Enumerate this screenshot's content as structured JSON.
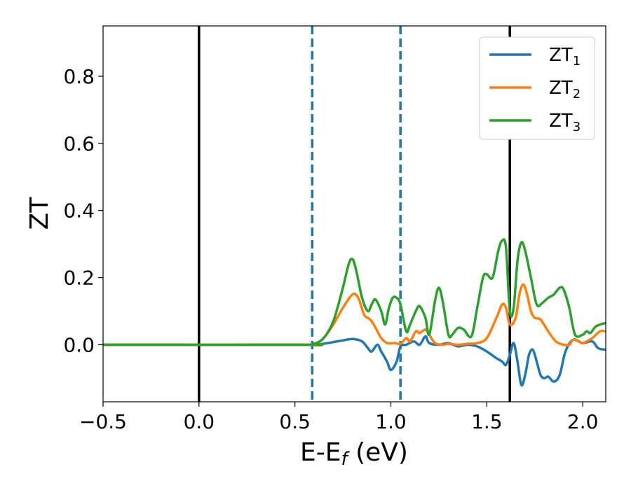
{
  "chart_data": {
    "type": "line",
    "title": "",
    "xlabel": {
      "main": "E-E",
      "sub": "f",
      "rest": " (eV)"
    },
    "ylabel": "ZT",
    "xlim": [
      -0.5,
      2.12
    ],
    "ylim": [
      -0.17,
      0.95
    ],
    "xticks": [
      -0.5,
      0.0,
      0.5,
      1.0,
      1.5,
      2.0
    ],
    "xtick_labels": [
      "−0.5",
      "0.0",
      "0.5",
      "1.0",
      "1.5",
      "2.0"
    ],
    "yticks": [
      0.0,
      0.2,
      0.4,
      0.6,
      0.8
    ],
    "ytick_labels": [
      "0.0",
      "0.2",
      "0.4",
      "0.6",
      "0.8"
    ],
    "grid": false,
    "legend_position": "top-right",
    "vlines": [
      {
        "x": 0.0,
        "style": "solid",
        "color": "#000000"
      },
      {
        "x": 1.62,
        "style": "solid",
        "color": "#000000"
      },
      {
        "x": 0.59,
        "style": "dashed",
        "color": "#1f77b4"
      },
      {
        "x": 1.05,
        "style": "dashed",
        "color": "#1f77b4"
      }
    ],
    "series": [
      {
        "name": "ZT",
        "sub": "1",
        "color": "#1f77b4",
        "points": [
          [
            -0.5,
            0.0
          ],
          [
            0.55,
            0.0
          ],
          [
            0.6,
            0.0
          ],
          [
            0.65,
            0.003
          ],
          [
            0.7,
            0.008
          ],
          [
            0.75,
            0.013
          ],
          [
            0.8,
            0.017
          ],
          [
            0.85,
            0.01
          ],
          [
            0.88,
            -0.01
          ],
          [
            0.9,
            -0.02
          ],
          [
            0.93,
            0.0
          ],
          [
            0.95,
            -0.02
          ],
          [
            0.98,
            -0.05
          ],
          [
            1.0,
            -0.075
          ],
          [
            1.03,
            -0.05
          ],
          [
            1.05,
            -0.005
          ],
          [
            1.08,
            0.0
          ],
          [
            1.12,
            0.01
          ],
          [
            1.15,
            0.0
          ],
          [
            1.18,
            0.025
          ],
          [
            1.2,
            0.005
          ],
          [
            1.25,
            0.0
          ],
          [
            1.3,
            0.005
          ],
          [
            1.35,
            -0.005
          ],
          [
            1.4,
            0.0
          ],
          [
            1.45,
            -0.005
          ],
          [
            1.5,
            -0.02
          ],
          [
            1.55,
            -0.04
          ],
          [
            1.58,
            -0.05
          ],
          [
            1.6,
            -0.06
          ],
          [
            1.62,
            -0.03
          ],
          [
            1.64,
            0.005
          ],
          [
            1.66,
            -0.05
          ],
          [
            1.68,
            -0.12
          ],
          [
            1.7,
            -0.09
          ],
          [
            1.72,
            -0.03
          ],
          [
            1.74,
            -0.015
          ],
          [
            1.76,
            -0.05
          ],
          [
            1.78,
            -0.09
          ],
          [
            1.8,
            -0.1
          ],
          [
            1.82,
            -0.095
          ],
          [
            1.85,
            -0.11
          ],
          [
            1.88,
            -0.09
          ],
          [
            1.91,
            -0.02
          ],
          [
            1.95,
            0.015
          ],
          [
            2.0,
            0.005
          ],
          [
            2.05,
            0.01
          ],
          [
            2.08,
            -0.01
          ],
          [
            2.12,
            -0.015
          ]
        ]
      },
      {
        "name": "ZT",
        "sub": "2",
        "color": "#ff7f0e",
        "points": [
          [
            -0.5,
            0.0
          ],
          [
            0.55,
            0.0
          ],
          [
            0.6,
            0.0
          ],
          [
            0.65,
            0.02
          ],
          [
            0.7,
            0.06
          ],
          [
            0.75,
            0.11
          ],
          [
            0.8,
            0.15
          ],
          [
            0.83,
            0.14
          ],
          [
            0.86,
            0.09
          ],
          [
            0.88,
            0.08
          ],
          [
            0.9,
            0.07
          ],
          [
            0.93,
            0.04
          ],
          [
            0.95,
            0.02
          ],
          [
            0.98,
            0.005
          ],
          [
            1.02,
            0.005
          ],
          [
            1.05,
            0.003
          ],
          [
            1.08,
            0.02
          ],
          [
            1.1,
            0.01
          ],
          [
            1.13,
            0.04
          ],
          [
            1.15,
            0.035
          ],
          [
            1.18,
            0.045
          ],
          [
            1.2,
            0.03
          ],
          [
            1.23,
            0.005
          ],
          [
            1.27,
            0.0
          ],
          [
            1.3,
            0.003
          ],
          [
            1.35,
            0.0
          ],
          [
            1.4,
            0.003
          ],
          [
            1.45,
            0.005
          ],
          [
            1.5,
            0.02
          ],
          [
            1.55,
            0.08
          ],
          [
            1.58,
            0.12
          ],
          [
            1.6,
            0.11
          ],
          [
            1.62,
            0.06
          ],
          [
            1.65,
            0.08
          ],
          [
            1.67,
            0.15
          ],
          [
            1.69,
            0.18
          ],
          [
            1.71,
            0.15
          ],
          [
            1.73,
            0.1
          ],
          [
            1.75,
            0.08
          ],
          [
            1.78,
            0.075
          ],
          [
            1.82,
            0.04
          ],
          [
            1.86,
            0.01
          ],
          [
            1.9,
            0.0
          ],
          [
            1.93,
            0.0
          ],
          [
            1.95,
            0.015
          ],
          [
            1.98,
            0.01
          ],
          [
            2.0,
            0.005
          ],
          [
            2.05,
            0.02
          ],
          [
            2.09,
            0.04
          ],
          [
            2.12,
            0.04
          ]
        ]
      },
      {
        "name": "ZT",
        "sub": "3",
        "color": "#2ca02c",
        "points": [
          [
            -0.5,
            0.0
          ],
          [
            0.55,
            0.0
          ],
          [
            0.6,
            0.003
          ],
          [
            0.65,
            0.02
          ],
          [
            0.7,
            0.07
          ],
          [
            0.75,
            0.17
          ],
          [
            0.78,
            0.24
          ],
          [
            0.8,
            0.255
          ],
          [
            0.82,
            0.22
          ],
          [
            0.85,
            0.14
          ],
          [
            0.88,
            0.1
          ],
          [
            0.9,
            0.12
          ],
          [
            0.92,
            0.135
          ],
          [
            0.95,
            0.1
          ],
          [
            0.97,
            0.06
          ],
          [
            0.99,
            0.11
          ],
          [
            1.01,
            0.14
          ],
          [
            1.03,
            0.14
          ],
          [
            1.05,
            0.12
          ],
          [
            1.08,
            0.04
          ],
          [
            1.1,
            0.06
          ],
          [
            1.13,
            0.1
          ],
          [
            1.15,
            0.115
          ],
          [
            1.18,
            0.08
          ],
          [
            1.2,
            0.03
          ],
          [
            1.23,
            0.13
          ],
          [
            1.25,
            0.17
          ],
          [
            1.27,
            0.13
          ],
          [
            1.3,
            0.03
          ],
          [
            1.32,
            0.03
          ],
          [
            1.35,
            0.05
          ],
          [
            1.38,
            0.045
          ],
          [
            1.42,
            0.025
          ],
          [
            1.45,
            0.11
          ],
          [
            1.48,
            0.2
          ],
          [
            1.5,
            0.21
          ],
          [
            1.53,
            0.2
          ],
          [
            1.56,
            0.28
          ],
          [
            1.58,
            0.31
          ],
          [
            1.6,
            0.29
          ],
          [
            1.62,
            0.1
          ],
          [
            1.64,
            0.11
          ],
          [
            1.66,
            0.25
          ],
          [
            1.68,
            0.305
          ],
          [
            1.7,
            0.28
          ],
          [
            1.73,
            0.2
          ],
          [
            1.76,
            0.12
          ],
          [
            1.79,
            0.125
          ],
          [
            1.82,
            0.14
          ],
          [
            1.85,
            0.15
          ],
          [
            1.88,
            0.17
          ],
          [
            1.9,
            0.165
          ],
          [
            1.93,
            0.11
          ],
          [
            1.96,
            0.03
          ],
          [
            2.0,
            0.03
          ],
          [
            2.02,
            0.04
          ],
          [
            2.04,
            0.035
          ],
          [
            2.07,
            0.055
          ],
          [
            2.12,
            0.065
          ]
        ]
      }
    ]
  }
}
